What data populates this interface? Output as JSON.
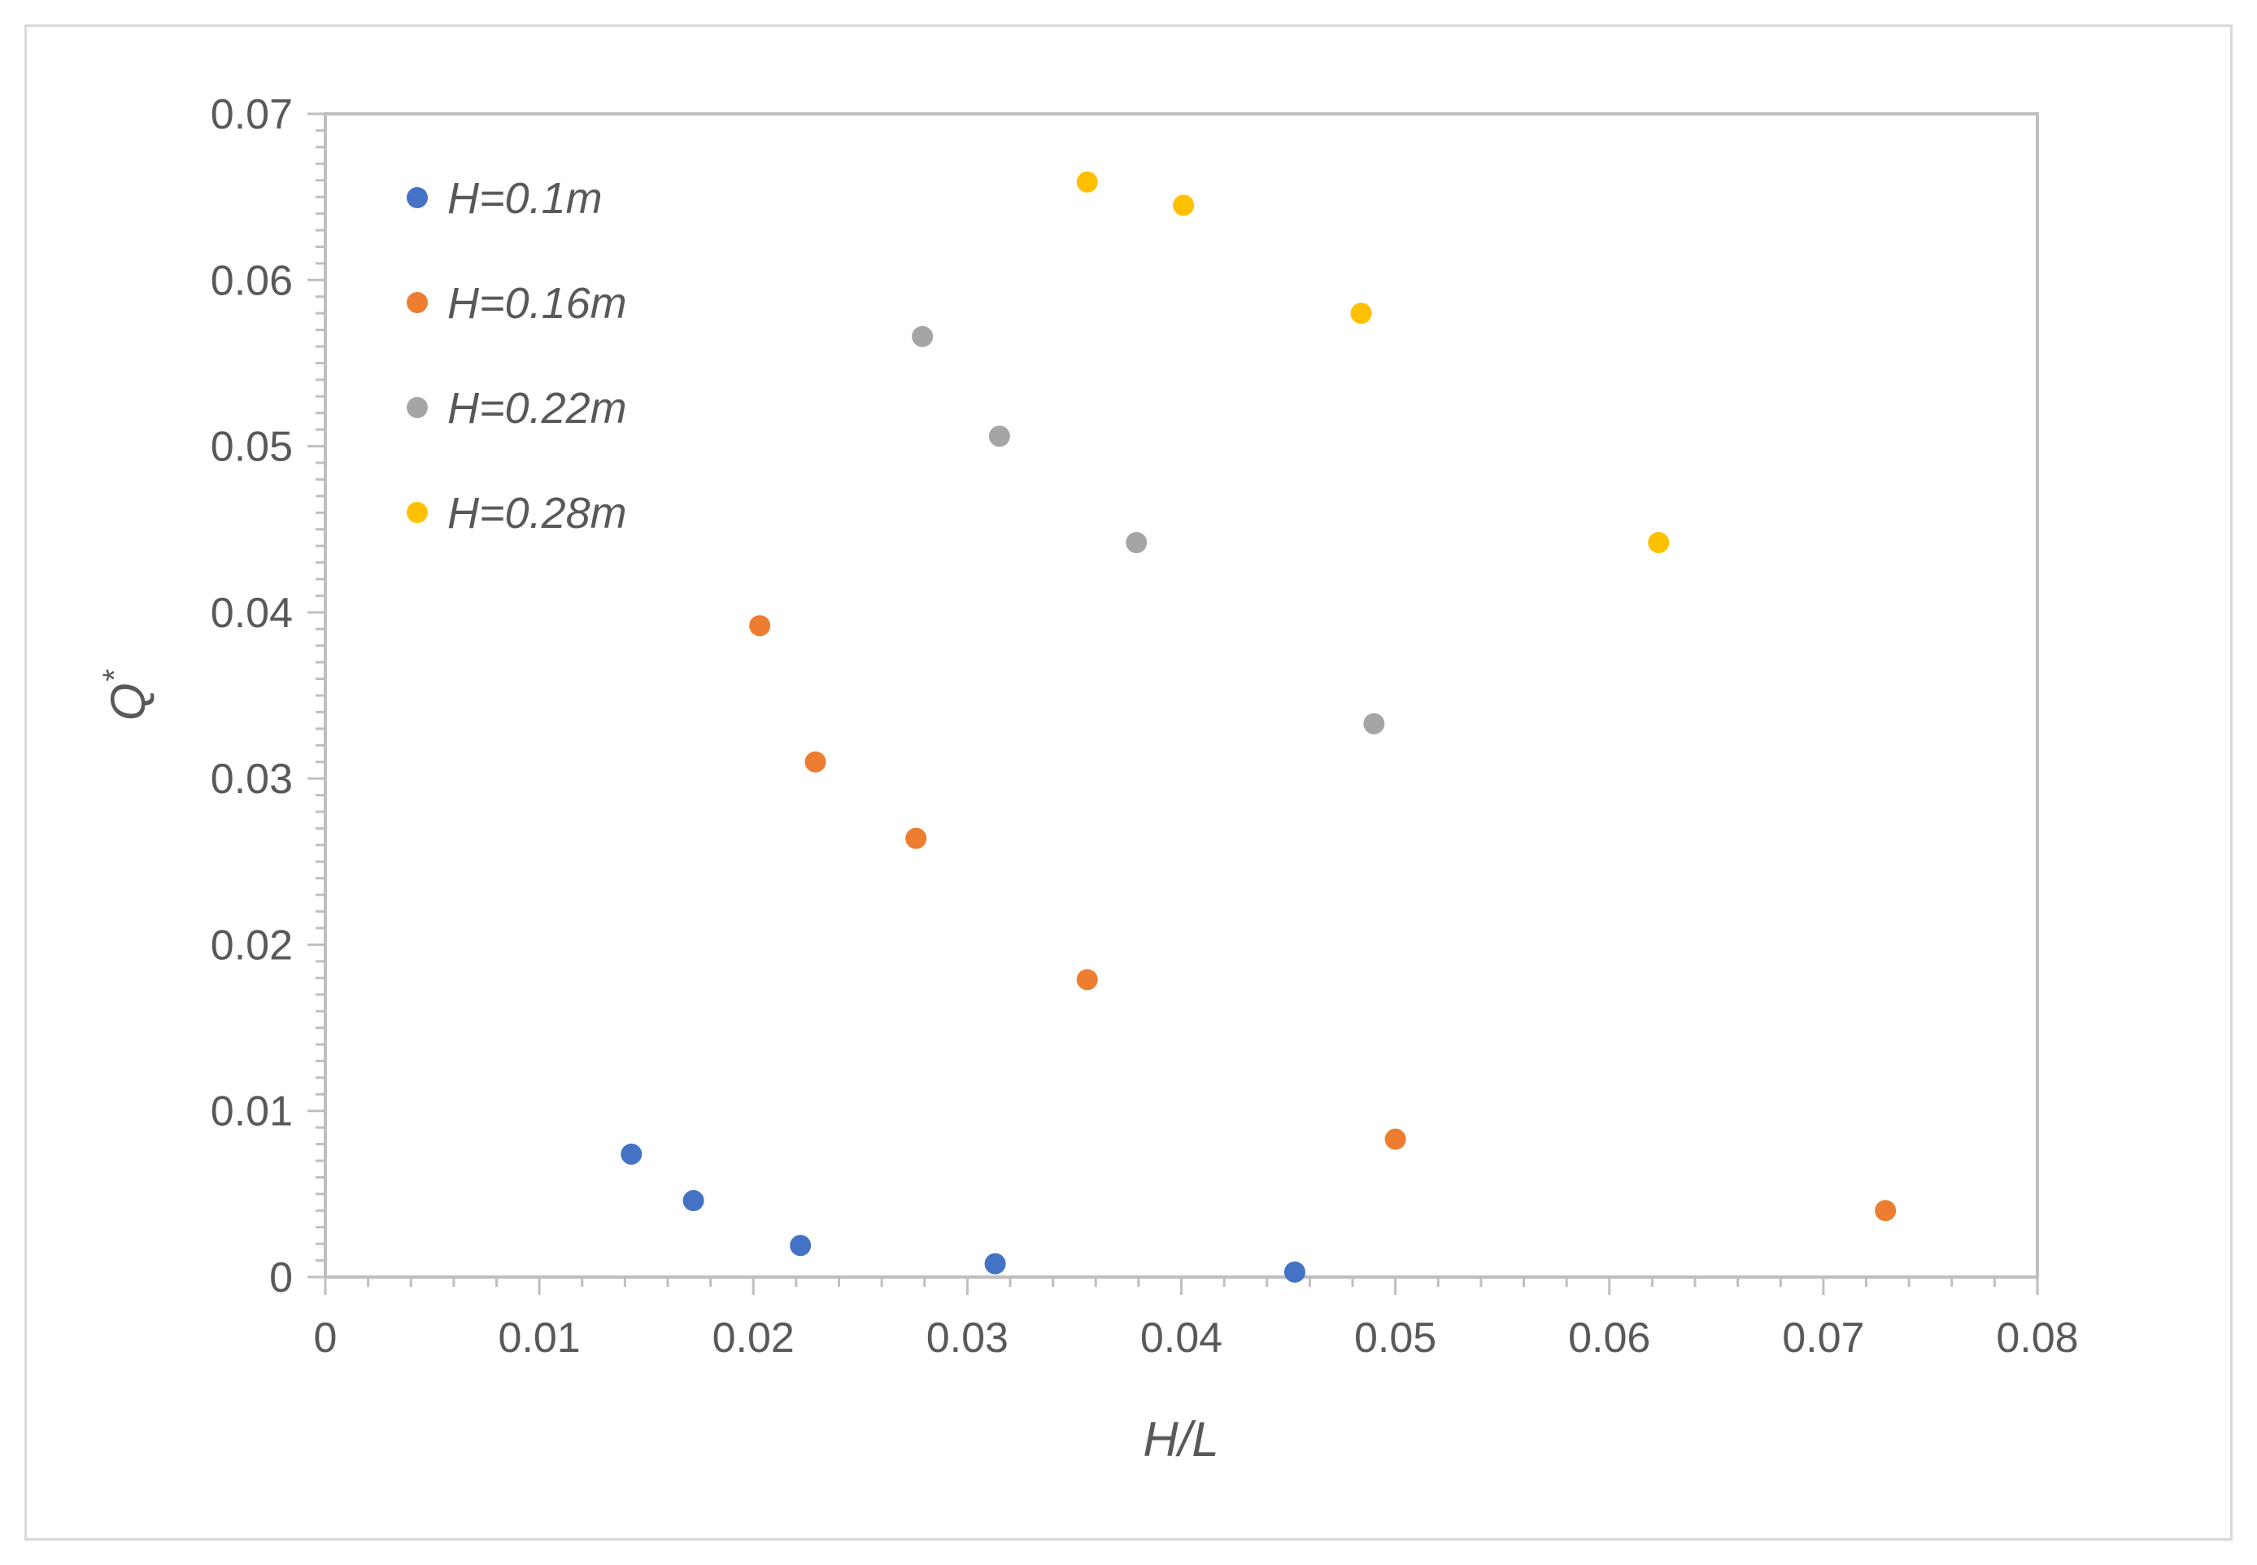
{
  "chart_data": {
    "type": "scatter",
    "title": "",
    "xlabel": "H/L",
    "ylabel": "Q",
    "ylabel_superscript": "*",
    "xlim": [
      0,
      0.08
    ],
    "ylim": [
      0,
      0.07
    ],
    "xticks": [
      "0",
      "0.01",
      "0.02",
      "0.03",
      "0.04",
      "0.05",
      "0.06",
      "0.07",
      "0.08"
    ],
    "yticks": [
      "0",
      "0.01",
      "0.02",
      "0.03",
      "0.04",
      "0.05",
      "0.06",
      "0.07"
    ],
    "grid": false,
    "legend_position": "top-left",
    "series": [
      {
        "name": "H=0.1m",
        "color": "#4472c4",
        "points": [
          [
            0.0143,
            0.0074
          ],
          [
            0.0172,
            0.0046
          ],
          [
            0.0222,
            0.0019
          ],
          [
            0.0313,
            0.0008
          ],
          [
            0.0453,
            0.0003
          ]
        ]
      },
      {
        "name": "H=0.16m",
        "color": "#ed7d31",
        "points": [
          [
            0.0203,
            0.0392
          ],
          [
            0.0229,
            0.031
          ],
          [
            0.0276,
            0.0264
          ],
          [
            0.0356,
            0.0179
          ],
          [
            0.05,
            0.0083
          ],
          [
            0.0729,
            0.004
          ]
        ]
      },
      {
        "name": "H=0.22m",
        "color": "#a5a5a5",
        "points": [
          [
            0.0279,
            0.0566
          ],
          [
            0.0315,
            0.0506
          ],
          [
            0.0379,
            0.0442
          ],
          [
            0.049,
            0.0333
          ]
        ]
      },
      {
        "name": "H=0.28m",
        "color": "#ffc000",
        "points": [
          [
            0.0356,
            0.0659
          ],
          [
            0.0401,
            0.0645
          ],
          [
            0.0484,
            0.058
          ],
          [
            0.0623,
            0.0442
          ]
        ]
      }
    ]
  }
}
